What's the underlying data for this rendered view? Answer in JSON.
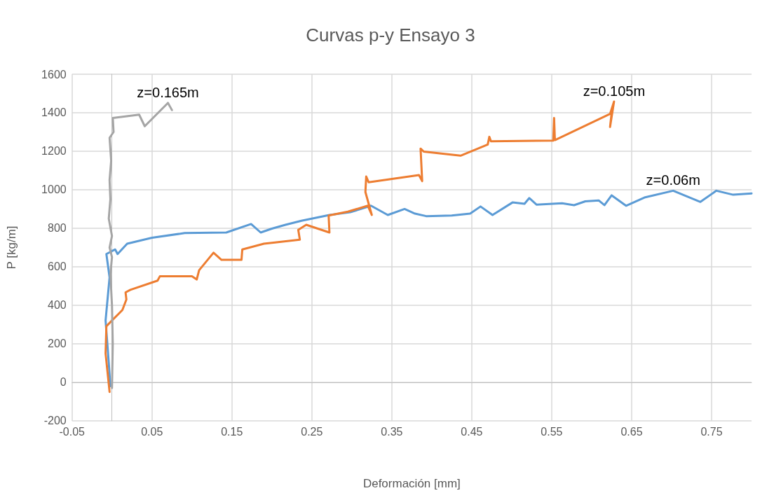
{
  "chart_data": {
    "type": "line",
    "title": "Curvas p-y Ensayo 3",
    "xlabel": "Deformación [mm]",
    "ylabel": "P [kg/m]",
    "xlim": [
      -0.05,
      0.8
    ],
    "xticks": [
      -0.05,
      0.05,
      0.15,
      0.25,
      0.35,
      0.45,
      0.55,
      0.65,
      0.75
    ],
    "ylim": [
      -200,
      1600
    ],
    "yticks": [
      -200,
      0,
      200,
      400,
      600,
      800,
      1000,
      1200,
      1400,
      1600
    ],
    "grid": true,
    "legend": false,
    "marker": "none",
    "line_style": "solid",
    "series": [
      {
        "name": "z=0.06m",
        "color": "#5b9bd5",
        "x": [
          -0.002,
          -0.004,
          -0.008,
          -0.003,
          -0.007,
          0.004,
          0.007,
          0.019,
          0.05,
          0.091,
          0.143,
          0.174,
          0.186,
          0.2,
          0.217,
          0.237,
          0.272,
          0.298,
          0.324,
          0.345,
          0.366,
          0.379,
          0.393,
          0.425,
          0.448,
          0.461,
          0.476,
          0.501,
          0.516,
          0.522,
          0.531,
          0.563,
          0.578,
          0.592,
          0.609,
          0.616,
          0.625,
          0.643,
          0.667,
          0.702,
          0.736,
          0.756,
          0.777,
          0.8
        ],
        "values": [
          -20,
          100,
          321,
          545,
          666,
          690,
          666,
          720,
          751,
          775,
          778,
          822,
          778,
          798,
          818,
          839,
          869,
          883,
          917,
          869,
          900,
          876,
          863,
          866,
          876,
          913,
          869,
          934,
          927,
          957,
          923,
          930,
          920,
          940,
          944,
          920,
          971,
          917,
          961,
          995,
          937,
          995,
          974,
          981
        ]
      },
      {
        "name": "z=0.105m",
        "color": "#ed7d31",
        "x": [
          -0.003,
          -0.005,
          -0.008,
          -0.007,
          0,
          0.013,
          0.018,
          0.017,
          0.023,
          0.057,
          0.06,
          0.1,
          0.106,
          0.109,
          0.127,
          0.137,
          0.162,
          0.163,
          0.19,
          0.2,
          0.235,
          0.233,
          0.243,
          0.272,
          0.271,
          0.295,
          0.32,
          0.325,
          0.317,
          0.318,
          0.321,
          0.384,
          0.388,
          0.386,
          0.39,
          0.436,
          0.47,
          0.472,
          0.474,
          0.552,
          0.553,
          0.554,
          0.623,
          0.628,
          0.623,
          0.625
        ],
        "values": [
          -50,
          30,
          150,
          291,
          321,
          375,
          430,
          467,
          480,
          528,
          551,
          551,
          534,
          582,
          673,
          636,
          636,
          690,
          720,
          724,
          741,
          792,
          818,
          778,
          866,
          886,
          917,
          869,
          988,
          1069,
          1039,
          1076,
          1045,
          1214,
          1198,
          1177,
          1235,
          1275,
          1252,
          1255,
          1373,
          1258,
          1394,
          1458,
          1326,
          1400
        ]
      },
      {
        "name": "z=0.165m",
        "color": "#a5a5a5",
        "x": [
          0,
          0.001,
          0,
          -0.002,
          0,
          -0.003,
          0,
          -0.004,
          -0.002,
          -0.003,
          -0.001,
          -0.003,
          0.002,
          0.001,
          0.034,
          0.041,
          0.07,
          0.075
        ],
        "values": [
          -30,
          200,
          400,
          560,
          650,
          700,
          760,
          850,
          950,
          1050,
          1150,
          1270,
          1300,
          1373,
          1390,
          1330,
          1451,
          1414
        ]
      }
    ]
  }
}
